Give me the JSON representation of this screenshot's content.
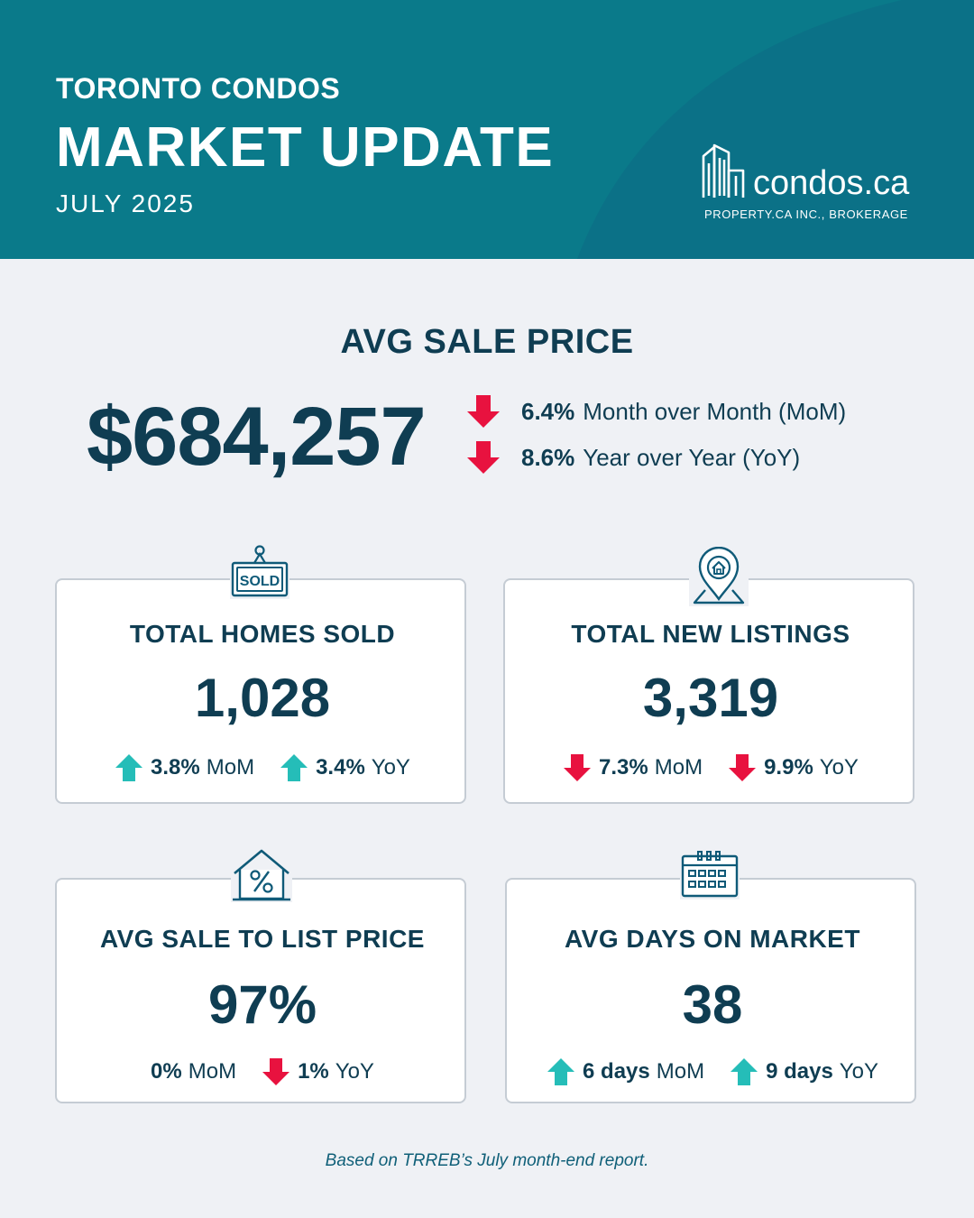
{
  "header": {
    "kicker": "TORONTO CONDOS",
    "headline": "MARKET UPDATE",
    "date": "JULY 2025",
    "logo_name": "condos.ca",
    "logo_sub": "PROPERTY.CA INC., BROKERAGE"
  },
  "avg_sale_price": {
    "title": "AVG SALE PRICE",
    "value": "$684,257",
    "changes": [
      {
        "direction": "down",
        "pct": "6.4%",
        "label": "Month over Month (MoM)"
      },
      {
        "direction": "down",
        "pct": "8.6%",
        "label": "Year over Year (YoY)"
      }
    ]
  },
  "cards": [
    {
      "icon": "sold-sign-icon",
      "title": "TOTAL HOMES SOLD",
      "value": "1,028",
      "stats": [
        {
          "direction": "up",
          "pct": "3.8%",
          "label": "MoM"
        },
        {
          "direction": "up",
          "pct": "3.4%",
          "label": "YoY"
        }
      ]
    },
    {
      "icon": "location-pin-house-icon",
      "title": "TOTAL NEW LISTINGS",
      "value": "3,319",
      "stats": [
        {
          "direction": "down",
          "pct": "7.3%",
          "label": "MoM"
        },
        {
          "direction": "down",
          "pct": "9.9%",
          "label": "YoY"
        }
      ]
    },
    {
      "icon": "house-percent-icon",
      "title": "AVG SALE TO LIST PRICE",
      "value": "97%",
      "stats": [
        {
          "direction": "none",
          "pct": "0%",
          "label": "MoM"
        },
        {
          "direction": "down",
          "pct": "1%",
          "label": "YoY"
        }
      ]
    },
    {
      "icon": "calendar-icon",
      "title": "AVG DAYS ON MARKET",
      "value": "38",
      "stats": [
        {
          "direction": "up",
          "pct": "6 days",
          "label": "MoM"
        },
        {
          "direction": "up",
          "pct": "9 days",
          "label": "YoY"
        }
      ]
    }
  ],
  "footnote": "Based on TRREB’s July month-end report.",
  "colors": {
    "header_bg": "#0a7a8a",
    "text_navy": "#0f3d52",
    "arrow_up": "#25bdb8",
    "arrow_down": "#e8123f",
    "card_border": "#c5ccd4",
    "page_bg": "#eff1f5"
  }
}
